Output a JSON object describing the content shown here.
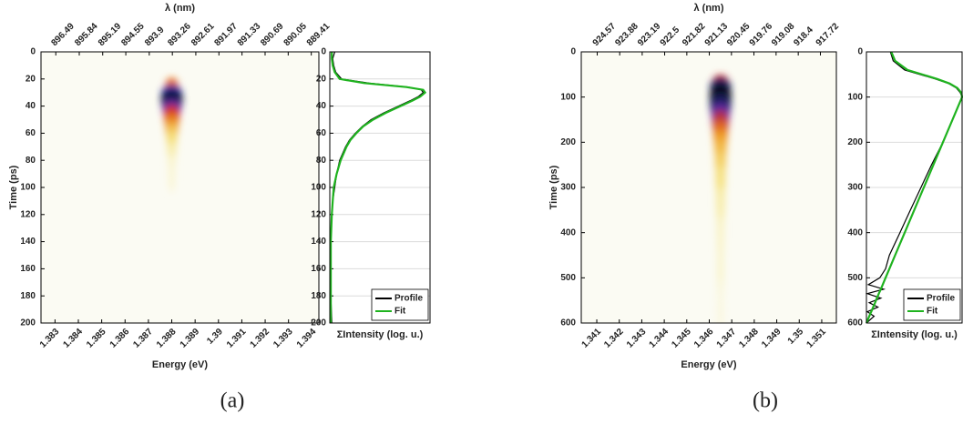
{
  "chart_data": [
    {
      "type": "heatmap",
      "caption": "(a)",
      "xlabel": "Energy (eV)",
      "x2label": "λ (nm)",
      "ylabel": "Time (ps)",
      "xlim": [
        1.3824,
        1.3943
      ],
      "xticks": [
        1.383,
        1.384,
        1.385,
        1.386,
        1.387,
        1.388,
        1.389,
        1.39,
        1.391,
        1.392,
        1.393,
        1.394
      ],
      "x2lim": [
        896.9,
        889.2
      ],
      "x2ticks": [
        896.49,
        895.84,
        895.19,
        894.55,
        893.9,
        893.26,
        892.61,
        891.97,
        891.33,
        890.69,
        890.05,
        889.41
      ],
      "ylim": [
        0,
        200
      ],
      "yticks": [
        0,
        20,
        40,
        60,
        80,
        100,
        120,
        140,
        160,
        180,
        200
      ],
      "x": [
        1.388,
        1.388,
        1.388,
        1.388,
        1.388,
        1.388,
        1.388,
        1.388,
        1.388,
        1.388,
        1.388
      ],
      "y": [
        26,
        30,
        34,
        38,
        42,
        48,
        55,
        62,
        70,
        80,
        90
      ],
      "values": [
        0.5,
        0.9,
        1.0,
        0.95,
        0.8,
        0.6,
        0.45,
        0.3,
        0.2,
        0.1,
        0.05
      ]
    },
    {
      "type": "line",
      "xlabel": "ΣIntensity (log. u.)",
      "xlim": [
        0,
        1.02
      ],
      "ylim": [
        0,
        200
      ],
      "yticks": [
        0,
        20,
        40,
        60,
        80,
        100,
        120,
        140,
        160,
        180,
        200
      ],
      "grid": true,
      "legend": "lower right",
      "y": [
        0,
        5,
        10,
        15,
        20,
        23,
        26,
        28,
        30,
        33,
        36,
        40,
        45,
        50,
        55,
        60,
        65,
        70,
        80,
        90,
        100,
        110,
        120,
        140,
        160,
        180,
        200
      ],
      "series": [
        {
          "name": "Profile",
          "color": "#000000",
          "values": [
            0.05,
            0.03,
            0.04,
            0.06,
            0.12,
            0.4,
            0.8,
            0.93,
            0.95,
            0.9,
            0.82,
            0.7,
            0.55,
            0.42,
            0.33,
            0.26,
            0.2,
            0.16,
            0.1,
            0.07,
            0.05,
            0.03,
            0.02,
            0.01,
            0.01,
            0.01,
            0.02
          ]
        },
        {
          "name": "Fit",
          "color": "#1fb31f",
          "values": [
            0.02,
            0.02,
            0.03,
            0.05,
            0.1,
            0.35,
            0.78,
            0.95,
            0.97,
            0.92,
            0.84,
            0.72,
            0.57,
            0.44,
            0.34,
            0.27,
            0.21,
            0.17,
            0.11,
            0.07,
            0.04,
            0.03,
            0.02,
            0.01,
            0.01,
            0.01,
            0.01
          ]
        }
      ]
    },
    {
      "type": "heatmap",
      "caption": "(b)",
      "xlabel": "Energy (eV)",
      "x2label": "λ (nm)",
      "ylabel": "Time (ps)",
      "xlim": [
        1.34031,
        1.35165
      ],
      "xticks": [
        1.341,
        1.342,
        1.343,
        1.344,
        1.345,
        1.346,
        1.347,
        1.348,
        1.349,
        1.35,
        1.351
      ],
      "x2lim": [
        925.06,
        917.23
      ],
      "x2ticks": [
        924.57,
        923.88,
        923.19,
        922.5,
        921.82,
        921.13,
        920.45,
        919.76,
        919.08,
        918.4,
        917.72
      ],
      "ylim": [
        0,
        600
      ],
      "yticks": [
        0,
        100,
        200,
        300,
        400,
        500,
        600
      ],
      "x": [
        1.3465,
        1.3465,
        1.3465,
        1.3465,
        1.3465,
        1.3465,
        1.3465,
        1.3465,
        1.3465,
        1.3465,
        1.3465,
        1.3465,
        1.3465,
        1.3465
      ],
      "y": [
        65,
        80,
        100,
        120,
        140,
        160,
        185,
        210,
        240,
        280,
        330,
        400,
        480,
        570
      ],
      "values": [
        0.6,
        0.95,
        1.0,
        0.95,
        0.8,
        0.65,
        0.5,
        0.4,
        0.32,
        0.25,
        0.18,
        0.1,
        0.06,
        0.03
      ]
    },
    {
      "type": "line",
      "xlabel": "ΣIntensity (log. u.)",
      "xlim": [
        0,
        1
      ],
      "ylim": [
        0,
        600
      ],
      "yticks": [
        0,
        100,
        200,
        300,
        400,
        500,
        600
      ],
      "grid": true,
      "legend": "lower right",
      "y": [
        0,
        20,
        40,
        60,
        70,
        80,
        90,
        100,
        150,
        200,
        250,
        300,
        350,
        400,
        450,
        480,
        500,
        515,
        525,
        535,
        545,
        555,
        565,
        575,
        585,
        600
      ],
      "series": [
        {
          "name": "Profile",
          "color": "#000000",
          "values": [
            0.25,
            0.28,
            0.4,
            0.72,
            0.86,
            0.94,
            0.98,
            1.0,
            0.9,
            0.8,
            0.68,
            0.57,
            0.46,
            0.35,
            0.24,
            0.2,
            0.14,
            0.02,
            0.18,
            0.01,
            0.15,
            0.03,
            0.12,
            0.01,
            0.08,
            0.0
          ]
        },
        {
          "name": "Fit",
          "color": "#1fb31f",
          "values": [
            0.26,
            0.3,
            0.43,
            0.74,
            0.87,
            0.95,
            0.99,
            1.0,
            0.9,
            0.8,
            0.7,
            0.6,
            0.5,
            0.4,
            0.3,
            0.24,
            0.2,
            0.17,
            0.15,
            0.13,
            0.11,
            0.09,
            0.07,
            0.05,
            0.03,
            0.0
          ]
        }
      ]
    }
  ]
}
